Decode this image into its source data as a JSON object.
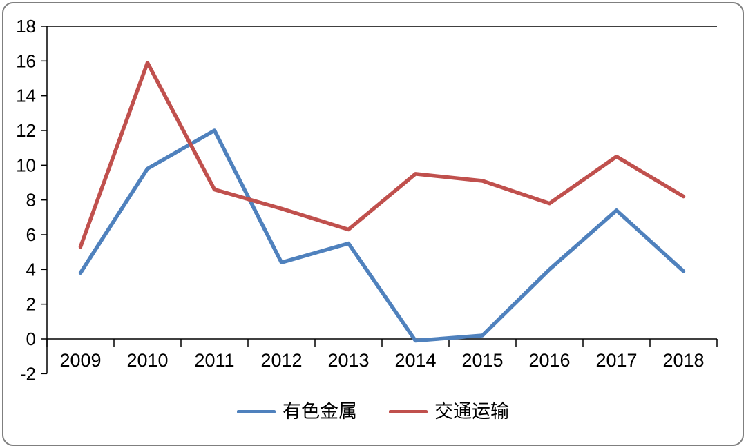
{
  "chart_data": {
    "type": "line",
    "title": "",
    "xlabel": "",
    "ylabel": "",
    "categories": [
      "2009",
      "2010",
      "2011",
      "2012",
      "2013",
      "2014",
      "2015",
      "2016",
      "2017",
      "2018"
    ],
    "series": [
      {
        "name": "有色金属",
        "color": "#4F81BD",
        "values": [
          3.8,
          9.8,
          12.0,
          4.4,
          5.5,
          -0.1,
          0.2,
          4.0,
          7.4,
          3.9
        ]
      },
      {
        "name": "交通运输",
        "color": "#C0504D",
        "values": [
          5.3,
          15.9,
          8.6,
          7.5,
          6.3,
          9.5,
          9.1,
          7.8,
          10.5,
          8.2
        ]
      }
    ],
    "ylim": [
      -2,
      18
    ],
    "ytick_step": 2,
    "ytick_labels": [
      "-2",
      "0",
      "2",
      "4",
      "6",
      "8",
      "10",
      "12",
      "14",
      "16",
      "18"
    ],
    "grid": "none",
    "legend_position": "bottom",
    "axis_color": "#000000",
    "frame_color": "#7f7f7f"
  }
}
